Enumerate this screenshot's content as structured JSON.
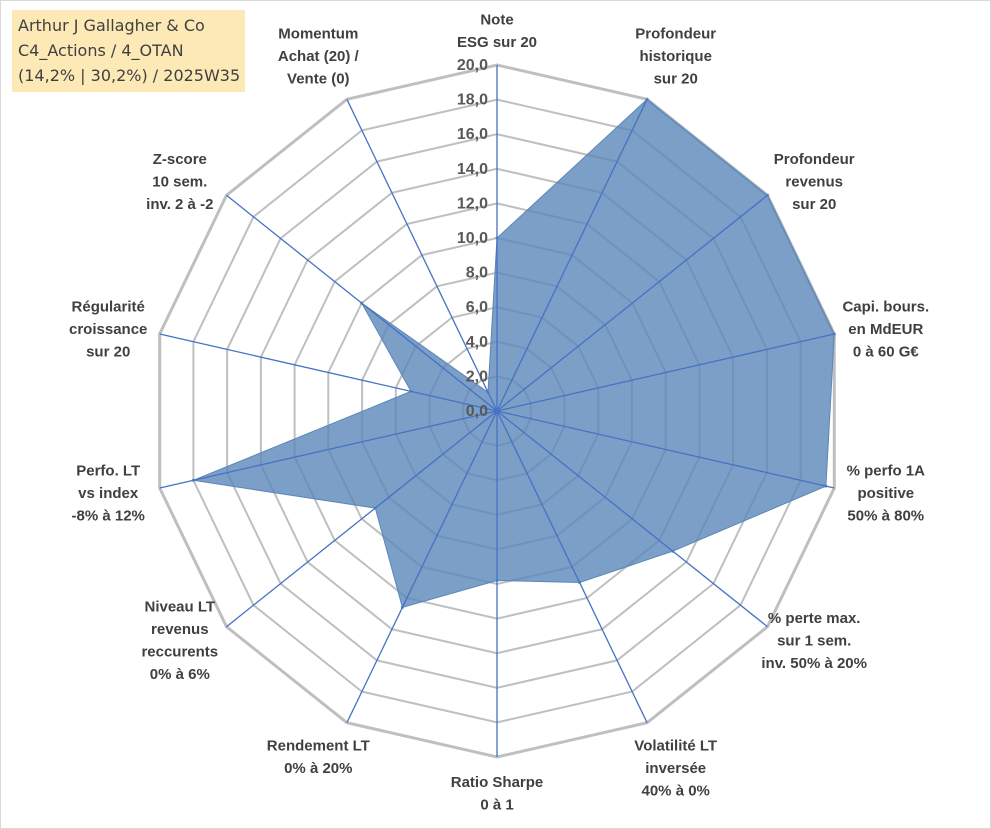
{
  "info_box": {
    "line1": "Arthur J Gallagher & Co",
    "line2": "C4_Actions / 4_OTAN",
    "line3": "(14,2% | 30,2%) / 2025W35"
  },
  "colors": {
    "fill": "#5b87b9",
    "fill_opacity": 0.8,
    "spoke": "#4472c4",
    "grid": "#bfbfbf",
    "text": "#404040"
  },
  "chart_data": {
    "type": "radar",
    "title": "",
    "r_range": [
      0,
      20
    ],
    "r_ticks": [
      "0,0",
      "2,0",
      "4,0",
      "6,0",
      "8,0",
      "10,0",
      "12,0",
      "14,0",
      "16,0",
      "18,0",
      "20,0"
    ],
    "categories": [
      [
        "Note",
        "ESG sur 20"
      ],
      [
        "Profondeur",
        "historique",
        "sur 20"
      ],
      [
        "Profondeur",
        "revenus",
        "sur 20"
      ],
      [
        "Capi. bours.",
        "en MdEUR",
        "0 à 60 G€"
      ],
      [
        "% perfo 1A",
        "positive",
        "50% à 80%"
      ],
      [
        "% perte max.",
        "sur 1 sem.",
        "inv. 50% à 20%"
      ],
      [
        "Volatilité LT",
        "inversée",
        "40% à 0%"
      ],
      [
        "Ratio Sharpe",
        "0 à 1"
      ],
      [
        "Rendement LT",
        "0% à 20%"
      ],
      [
        "Niveau LT",
        "revenus",
        "reccurents",
        "0% à 6%"
      ],
      [
        "Perfo. LT",
        "vs index",
        "-8% à 12%"
      ],
      [
        "Régularité",
        "croissance",
        "sur 20"
      ],
      [
        "Z-score",
        "10 sem.",
        "inv. 2 à -2"
      ],
      [
        "Momentum",
        "Achat (20) /",
        "Vente (0)"
      ]
    ],
    "series": [
      {
        "values": [
          10.0,
          20.0,
          20.0,
          20.0,
          19.5,
          13.0,
          11.0,
          9.8,
          12.6,
          9.0,
          18.0,
          5.1,
          10.0,
          1.2
        ]
      }
    ],
    "grid": true,
    "legend": "none"
  }
}
